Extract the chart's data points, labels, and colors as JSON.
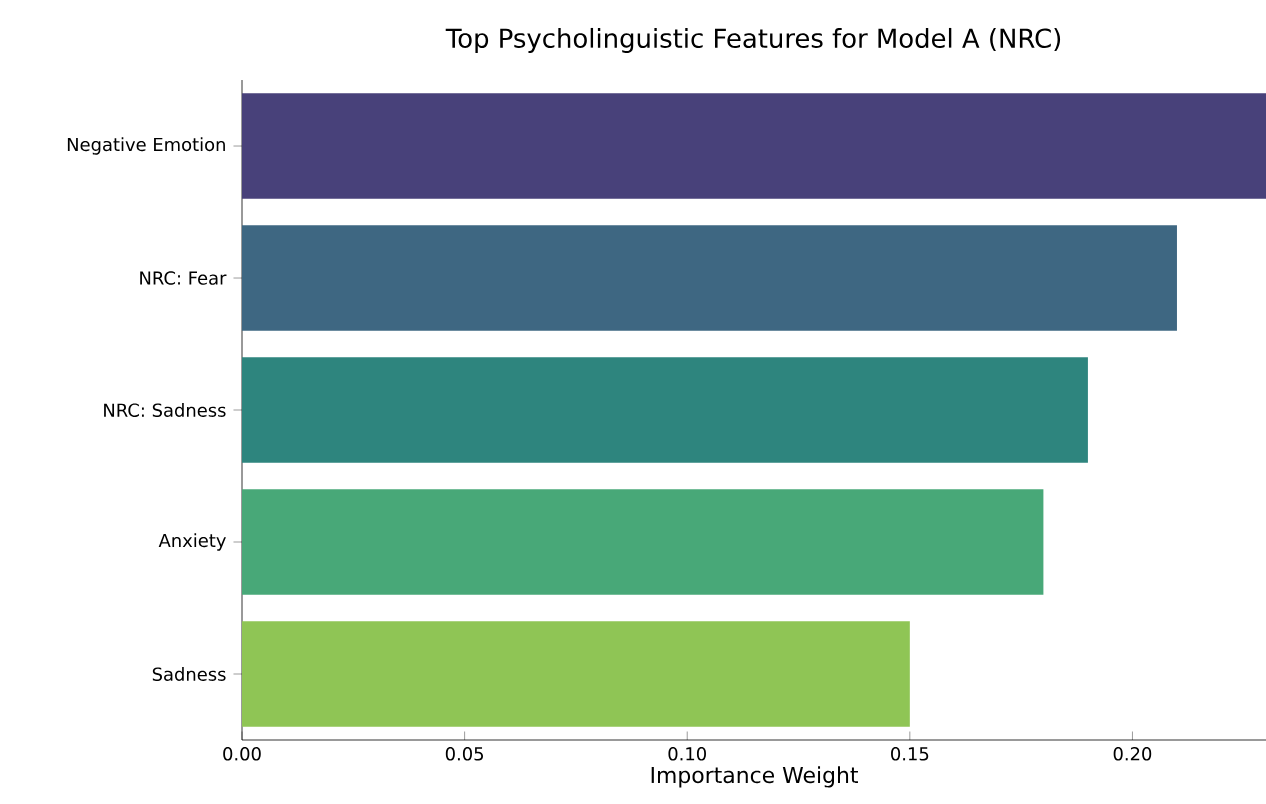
{
  "chart_data": {
    "type": "bar",
    "orientation": "horizontal",
    "title": "Top Psycholinguistic Features for Model A (NRC)",
    "xlabel": "Importance Weight",
    "categories": [
      "Negative Emotion",
      "NRC: Fear",
      "NRC: Sadness",
      "Anxiety",
      "Sadness"
    ],
    "values": [
      0.23,
      0.21,
      0.19,
      0.18,
      0.15
    ],
    "colors": [
      "#48417a",
      "#3e6782",
      "#2e857e",
      "#48a878",
      "#8fc555"
    ],
    "xlim": [
      0,
      0.23
    ],
    "xticks": [
      {
        "value": 0,
        "label": "0.00"
      },
      {
        "value": 0.05,
        "label": "0.05"
      },
      {
        "value": 0.1,
        "label": "0.10"
      },
      {
        "value": 0.15,
        "label": "0.15"
      },
      {
        "value": 0.2,
        "label": "0.20"
      }
    ]
  }
}
